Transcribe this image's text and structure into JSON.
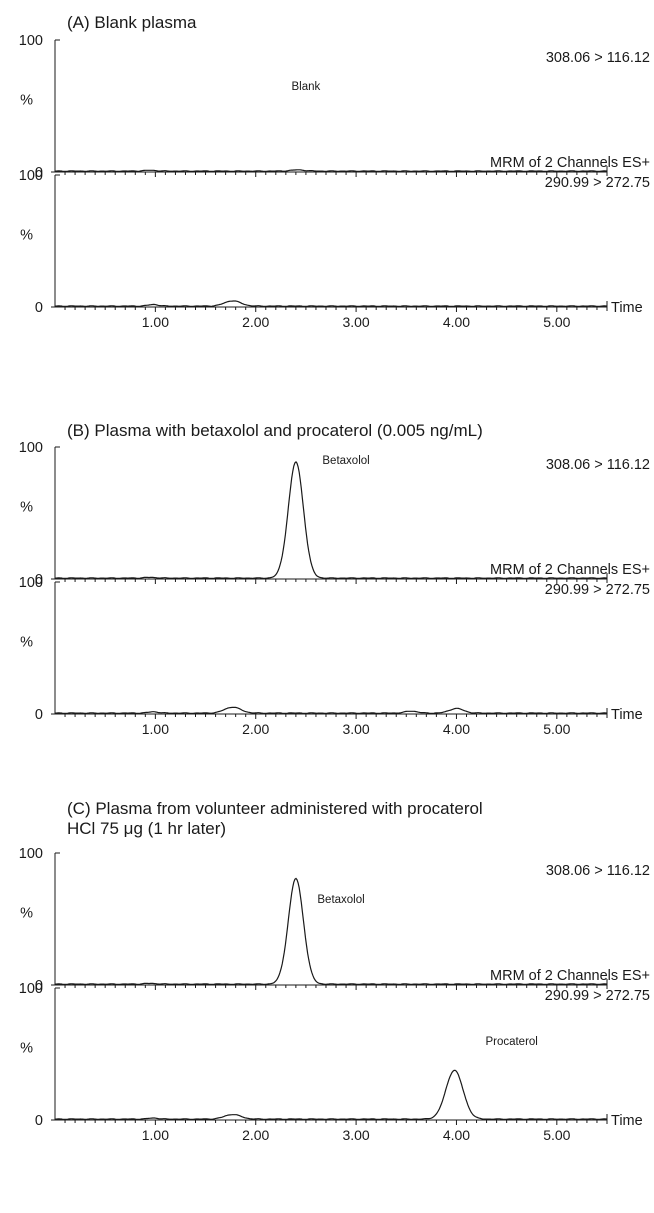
{
  "panels": [
    {
      "title_lines": [
        "(A) Blank plasma"
      ],
      "traces": [
        {
          "transition": "308.06 > 116.12",
          "header": "",
          "peak_label": "Blank",
          "label_pos": [
            2.5,
            62
          ],
          "peaks": [
            [
              0.95,
              0.6,
              0.06
            ],
            [
              2.42,
              0.9,
              0.07
            ]
          ],
          "show_xlabels": false
        },
        {
          "transition": "290.99 > 272.75",
          "header": "MRM of 2 Channels ES+",
          "peak_label": "",
          "label_pos": null,
          "peaks": [
            [
              0.98,
              1.2,
              0.05
            ],
            [
              1.77,
              4.0,
              0.08
            ]
          ],
          "show_xlabels": true
        }
      ]
    },
    {
      "title_lines": [
        "(B) Plasma with betaxolol and procaterol (0.005 ng/mL)"
      ],
      "traces": [
        {
          "transition": "308.06 > 116.12",
          "header": "",
          "peak_label": "Betaxolol",
          "label_pos": [
            2.9,
            87
          ],
          "peaks": [
            [
              2.4,
              88.0,
              0.075
            ],
            [
              0.95,
              0.5,
              0.06
            ]
          ],
          "show_xlabels": false
        },
        {
          "transition": "290.99 > 272.75",
          "header": "MRM of 2 Channels ES+",
          "peak_label": "",
          "label_pos": null,
          "peaks": [
            [
              0.98,
              1.0,
              0.05
            ],
            [
              1.77,
              4.5,
              0.08
            ],
            [
              3.55,
              1.5,
              0.06
            ],
            [
              4.0,
              3.5,
              0.07
            ]
          ],
          "show_xlabels": true
        }
      ]
    },
    {
      "title_lines": [
        "(C) Plasma from volunteer administered with procaterol",
        "HCl 75 μg (1 hr later)"
      ],
      "traces": [
        {
          "transition": "308.06 > 116.12",
          "header": "",
          "peak_label": "Betaxolol",
          "label_pos": [
            2.85,
            62
          ],
          "peaks": [
            [
              2.4,
              80.0,
              0.075
            ],
            [
              0.95,
              0.5,
              0.06
            ]
          ],
          "show_xlabels": false
        },
        {
          "transition": "290.99 > 272.75",
          "header": "MRM of 2 Channels ES+",
          "peak_label": "Procaterol",
          "label_pos": [
            4.55,
            57
          ],
          "peaks": [
            [
              3.98,
              37.0,
              0.085
            ],
            [
              1.77,
              3.5,
              0.08
            ],
            [
              0.98,
              0.8,
              0.05
            ]
          ],
          "show_xlabels": true
        }
      ]
    }
  ],
  "axis": {
    "y_top_label": "100",
    "y_mid_label": "%",
    "y_bottom_label": "0",
    "x_label": "Time",
    "x_tick_labels": [
      "1.00",
      "2.00",
      "3.00",
      "4.00",
      "5.00"
    ]
  },
  "chart_data": {
    "type": "line",
    "subtype": "LC-MS/MRM chromatograms (6 traces)",
    "x_unit_label": "Time",
    "x_ticks": [
      1.0,
      2.0,
      3.0,
      4.0,
      5.0
    ],
    "xlim": [
      0.0,
      5.5
    ],
    "ylim": [
      0,
      100
    ],
    "y_axis_label": "%",
    "panels": [
      {
        "panel": "(A) Blank plasma",
        "traces": [
          {
            "transition": "308.06 > 116.12",
            "annotation": "Blank",
            "peaks": [
              {
                "time": 0.95,
                "height": 0.6
              },
              {
                "time": 2.42,
                "height": 0.9
              }
            ]
          },
          {
            "transition": "290.99 > 272.75",
            "header": "MRM of 2 Channels ES+",
            "peaks": [
              {
                "time": 0.98,
                "height": 1.2
              },
              {
                "time": 1.77,
                "height": 4.0
              }
            ]
          }
        ]
      },
      {
        "panel": "(B) Plasma with betaxolol and procaterol (0.005 ng/mL)",
        "traces": [
          {
            "transition": "308.06 > 116.12",
            "annotation": "Betaxolol",
            "peaks": [
              {
                "time": 2.4,
                "height": 88.0
              },
              {
                "time": 0.95,
                "height": 0.5
              }
            ]
          },
          {
            "transition": "290.99 > 272.75",
            "header": "MRM of 2 Channels ES+",
            "peaks": [
              {
                "time": 0.98,
                "height": 1.0
              },
              {
                "time": 1.77,
                "height": 4.5
              },
              {
                "time": 3.55,
                "height": 1.5
              },
              {
                "time": 4.0,
                "height": 3.5
              }
            ]
          }
        ]
      },
      {
        "panel": "(C) Plasma from volunteer administered with procaterol HCl 75 μg (1 hr later)",
        "traces": [
          {
            "transition": "308.06 > 116.12",
            "annotation": "Betaxolol",
            "peaks": [
              {
                "time": 2.4,
                "height": 80.0
              },
              {
                "time": 0.95,
                "height": 0.5
              }
            ]
          },
          {
            "transition": "290.99 > 272.75",
            "header": "MRM of 2 Channels ES+",
            "annotation": "Procaterol",
            "peaks": [
              {
                "time": 3.98,
                "height": 37.0
              },
              {
                "time": 1.77,
                "height": 3.5
              },
              {
                "time": 0.98,
                "height": 0.8
              }
            ]
          }
        ]
      }
    ]
  }
}
